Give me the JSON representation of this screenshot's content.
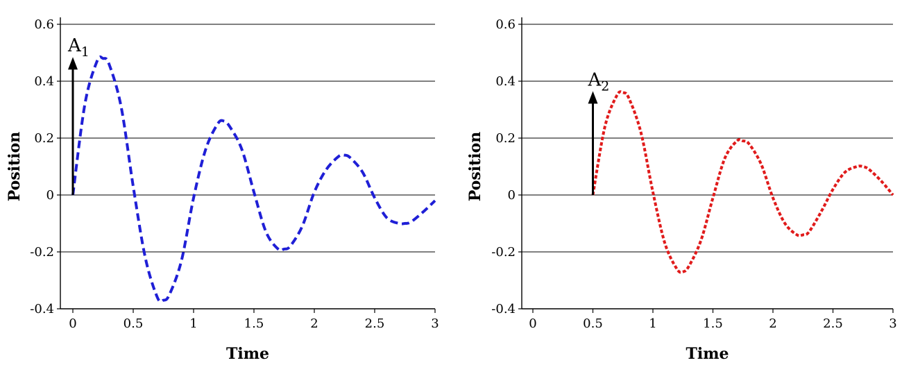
{
  "chart_data": [
    {
      "type": "line",
      "xlabel": "Time",
      "ylabel": "Position",
      "xlim": [
        0,
        3
      ],
      "ylim": [
        -0.4,
        0.6
      ],
      "x_ticks": [
        "0",
        "0.5",
        "1",
        "1.5",
        "2",
        "2.5",
        "3"
      ],
      "y_ticks": [
        "-0.4",
        "-0.2",
        "0",
        "0.2",
        "0.4",
        "0.6"
      ],
      "grid": "horizontal",
      "series": [
        {
          "color": "#1f1fd6",
          "line_style": "dashed",
          "x": [
            0,
            0.1,
            0.2,
            0.25,
            0.3,
            0.4,
            0.5,
            0.6,
            0.7,
            0.75,
            0.8,
            0.9,
            1.0,
            1.1,
            1.2,
            1.25,
            1.3,
            1.4,
            1.5,
            1.6,
            1.7,
            1.75,
            1.8,
            1.9,
            2.0,
            2.1,
            2.2,
            2.25,
            2.3,
            2.4,
            2.5,
            2.6,
            2.7,
            2.75,
            2.8,
            2.9,
            3.0
          ],
          "y": [
            0,
            0.32,
            0.47,
            0.48,
            0.46,
            0.31,
            0.03,
            -0.22,
            -0.36,
            -0.37,
            -0.35,
            -0.23,
            -0.01,
            0.16,
            0.25,
            0.26,
            0.24,
            0.16,
            0.01,
            -0.13,
            -0.19,
            -0.19,
            -0.18,
            -0.11,
            0.01,
            0.09,
            0.135,
            0.14,
            0.13,
            0.08,
            -0.01,
            -0.08,
            -0.1,
            -0.1,
            -0.095,
            -0.06,
            -0.02
          ]
        }
      ],
      "annotations": [
        {
          "type": "arrow",
          "text": "A",
          "subscript": "1",
          "x": 0,
          "y_from": 0,
          "y_to": 0.48
        }
      ]
    },
    {
      "type": "line",
      "xlabel": "Time",
      "ylabel": "Position",
      "xlim": [
        0,
        3
      ],
      "ylim": [
        -0.4,
        0.6
      ],
      "x_ticks": [
        "0",
        "0.5",
        "1",
        "1.5",
        "2",
        "2.5",
        "3"
      ],
      "y_ticks": [
        "-0.4",
        "-0.2",
        "0",
        "0.2",
        "0.4",
        "0.6"
      ],
      "grid": "horizontal",
      "series": [
        {
          "color": "#e01b1b",
          "line_style": "dotted",
          "x": [
            0.5,
            0.6,
            0.7,
            0.75,
            0.8,
            0.9,
            1.0,
            1.1,
            1.2,
            1.25,
            1.3,
            1.4,
            1.5,
            1.6,
            1.7,
            1.75,
            1.8,
            1.9,
            2.0,
            2.1,
            2.2,
            2.25,
            2.3,
            2.4,
            2.5,
            2.6,
            2.7,
            2.75,
            2.8,
            2.9,
            3.0
          ],
          "y": [
            0,
            0.24,
            0.35,
            0.36,
            0.34,
            0.22,
            0.01,
            -0.17,
            -0.26,
            -0.27,
            -0.25,
            -0.16,
            -0.01,
            0.13,
            0.19,
            0.19,
            0.18,
            0.11,
            -0.01,
            -0.1,
            -0.14,
            -0.14,
            -0.13,
            -0.06,
            0.02,
            0.08,
            0.1,
            0.1,
            0.09,
            0.05,
            0.0
          ]
        }
      ],
      "annotations": [
        {
          "type": "arrow",
          "text": "A",
          "subscript": "2",
          "x": 0.5,
          "y_from": 0,
          "y_to": 0.36
        }
      ]
    }
  ]
}
